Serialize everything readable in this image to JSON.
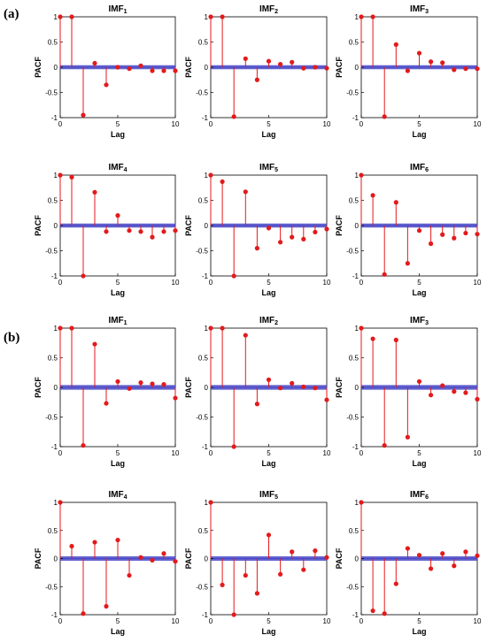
{
  "figure": {
    "panels": [
      {
        "label": "(a)"
      },
      {
        "label": "(b)"
      }
    ]
  },
  "chart_data": [
    {
      "type": "stem",
      "panel": "(a)",
      "title": "IMF",
      "title_subscript": "1",
      "xlabel": "Lag",
      "ylabel": "PACF",
      "xlim": [
        0,
        10
      ],
      "ylim": [
        -1,
        1
      ],
      "xticks": [
        0,
        5,
        10
      ],
      "yticks": [
        -1,
        -0.5,
        0,
        0.5,
        1
      ],
      "x": [
        0,
        1,
        2,
        3,
        4,
        5,
        6,
        7,
        8,
        9,
        10
      ],
      "values": [
        1,
        1,
        -0.95,
        0.08,
        -0.35,
        0.0,
        -0.03,
        0.03,
        -0.07,
        -0.07,
        -0.07
      ],
      "confidence_band": 0.04
    },
    {
      "type": "stem",
      "panel": "(a)",
      "title": "IMF",
      "title_subscript": "2",
      "xlabel": "Lag",
      "ylabel": "PACF",
      "xlim": [
        0,
        10
      ],
      "ylim": [
        -1,
        1
      ],
      "xticks": [
        0,
        5,
        10
      ],
      "yticks": [
        -1,
        -0.5,
        0,
        0.5,
        1
      ],
      "x": [
        0,
        1,
        2,
        3,
        4,
        5,
        6,
        7,
        8,
        9,
        10
      ],
      "values": [
        1,
        1,
        -0.98,
        0.17,
        -0.25,
        0.12,
        0.06,
        0.1,
        -0.02,
        0.0,
        -0.02
      ],
      "confidence_band": 0.04
    },
    {
      "type": "stem",
      "panel": "(a)",
      "title": "IMF",
      "title_subscript": "3",
      "xlabel": "Lag",
      "ylabel": "PACF",
      "xlim": [
        0,
        10
      ],
      "ylim": [
        -1,
        1
      ],
      "xticks": [
        0,
        5,
        10
      ],
      "yticks": [
        -1,
        -0.5,
        0,
        0.5,
        1
      ],
      "x": [
        0,
        1,
        2,
        3,
        4,
        5,
        6,
        7,
        8,
        9,
        10
      ],
      "values": [
        1,
        1,
        -0.98,
        0.45,
        -0.07,
        0.28,
        0.11,
        0.09,
        -0.05,
        -0.03,
        -0.03
      ],
      "confidence_band": 0.04
    },
    {
      "type": "stem",
      "panel": "(a)",
      "title": "IMF",
      "title_subscript": "4",
      "xlabel": "Lag",
      "ylabel": "PACF",
      "xlim": [
        0,
        10
      ],
      "ylim": [
        -1,
        1
      ],
      "xticks": [
        0,
        5,
        10
      ],
      "yticks": [
        -1,
        -0.5,
        0,
        0.5,
        1
      ],
      "x": [
        0,
        1,
        2,
        3,
        4,
        5,
        6,
        7,
        8,
        9,
        10
      ],
      "values": [
        1,
        0.96,
        -1.0,
        0.66,
        -0.12,
        0.2,
        -0.1,
        -0.12,
        -0.23,
        -0.12,
        -0.1
      ],
      "confidence_band": 0.04
    },
    {
      "type": "stem",
      "panel": "(a)",
      "title": "IMF",
      "title_subscript": "5",
      "xlabel": "Lag",
      "ylabel": "PACF",
      "xlim": [
        0,
        10
      ],
      "ylim": [
        -1,
        1
      ],
      "xticks": [
        0,
        5,
        10
      ],
      "yticks": [
        -1,
        -0.5,
        0,
        0.5,
        1
      ],
      "x": [
        0,
        1,
        2,
        3,
        4,
        5,
        6,
        7,
        8,
        9,
        10
      ],
      "values": [
        1,
        0.87,
        -1.0,
        0.67,
        -0.45,
        -0.05,
        -0.33,
        -0.23,
        -0.27,
        -0.13,
        -0.07
      ],
      "confidence_band": 0.04
    },
    {
      "type": "stem",
      "panel": "(a)",
      "title": "IMF",
      "title_subscript": "6",
      "xlabel": "Lag",
      "ylabel": "PACF",
      "xlim": [
        0,
        10
      ],
      "ylim": [
        -1,
        1
      ],
      "xticks": [
        0,
        5,
        10
      ],
      "yticks": [
        -1,
        -0.5,
        0,
        0.5,
        1
      ],
      "x": [
        0,
        1,
        2,
        3,
        4,
        5,
        6,
        7,
        8,
        9,
        10
      ],
      "values": [
        1,
        0.6,
        -0.97,
        0.46,
        -0.75,
        -0.1,
        -0.36,
        -0.18,
        -0.25,
        -0.15,
        -0.17
      ],
      "confidence_band": 0.04
    },
    {
      "type": "stem",
      "panel": "(b)",
      "title": "IMF",
      "title_subscript": "1",
      "xlabel": "Lag",
      "ylabel": "PACF",
      "xlim": [
        0,
        10
      ],
      "ylim": [
        -1,
        1
      ],
      "xticks": [
        0,
        5,
        10
      ],
      "yticks": [
        -1,
        -0.5,
        0,
        0.5,
        1
      ],
      "x": [
        0,
        1,
        2,
        3,
        4,
        5,
        6,
        7,
        8,
        9,
        10
      ],
      "values": [
        1,
        1,
        -0.98,
        0.73,
        -0.27,
        0.1,
        -0.02,
        0.08,
        0.06,
        0.05,
        -0.18
      ],
      "confidence_band": 0.04
    },
    {
      "type": "stem",
      "panel": "(b)",
      "title": "IMF",
      "title_subscript": "2",
      "xlabel": "Lag",
      "ylabel": "PACF",
      "xlim": [
        0,
        10
      ],
      "ylim": [
        -1,
        1
      ],
      "xticks": [
        0,
        5,
        10
      ],
      "yticks": [
        -1,
        -0.5,
        0,
        0.5,
        1
      ],
      "x": [
        0,
        1,
        2,
        3,
        4,
        5,
        6,
        7,
        8,
        9,
        10
      ],
      "values": [
        1,
        1,
        -1.0,
        0.88,
        -0.28,
        0.13,
        -0.01,
        0.07,
        0.01,
        -0.01,
        -0.21
      ],
      "confidence_band": 0.04
    },
    {
      "type": "stem",
      "panel": "(b)",
      "title": "IMF",
      "title_subscript": "3",
      "xlabel": "Lag",
      "ylabel": "PACF",
      "xlim": [
        0,
        10
      ],
      "ylim": [
        -1,
        1
      ],
      "xticks": [
        0,
        5,
        10
      ],
      "yticks": [
        -1,
        -0.5,
        0,
        0.5,
        1
      ],
      "x": [
        0,
        1,
        2,
        3,
        4,
        5,
        6,
        7,
        8,
        9,
        10
      ],
      "values": [
        1,
        0.82,
        -0.98,
        0.8,
        -0.84,
        0.1,
        -0.13,
        0.03,
        -0.07,
        -0.09,
        -0.2
      ],
      "confidence_band": 0.04
    },
    {
      "type": "stem",
      "panel": "(b)",
      "title": "IMF",
      "title_subscript": "4",
      "xlabel": "Lag",
      "ylabel": "PACF",
      "xlim": [
        0,
        10
      ],
      "ylim": [
        -1,
        1
      ],
      "xticks": [
        0,
        5,
        10
      ],
      "yticks": [
        -1,
        -0.5,
        0,
        0.5,
        1
      ],
      "x": [
        0,
        1,
        2,
        3,
        4,
        5,
        6,
        7,
        8,
        9,
        10
      ],
      "values": [
        1,
        0.22,
        -0.98,
        0.29,
        -0.85,
        0.33,
        -0.3,
        0.02,
        -0.03,
        0.09,
        -0.05
      ],
      "confidence_band": 0.04
    },
    {
      "type": "stem",
      "panel": "(b)",
      "title": "IMF",
      "title_subscript": "5",
      "xlabel": "Lag",
      "ylabel": "PACF",
      "xlim": [
        0,
        10
      ],
      "ylim": [
        -1,
        1
      ],
      "xticks": [
        0,
        5,
        10
      ],
      "yticks": [
        -1,
        -0.5,
        0,
        0.5,
        1
      ],
      "x": [
        0,
        1,
        2,
        3,
        4,
        5,
        6,
        7,
        8,
        9,
        10
      ],
      "values": [
        1,
        -0.47,
        -1.0,
        -0.3,
        -0.62,
        0.42,
        -0.28,
        0.12,
        -0.2,
        0.14,
        0.02
      ],
      "confidence_band": 0.04
    },
    {
      "type": "stem",
      "panel": "(b)",
      "title": "IMF",
      "title_subscript": "6",
      "xlabel": "Lag",
      "ylabel": "PACF",
      "xlim": [
        0,
        10
      ],
      "ylim": [
        -1,
        1
      ],
      "xticks": [
        0,
        5,
        10
      ],
      "yticks": [
        -1,
        -0.5,
        0,
        0.5,
        1
      ],
      "x": [
        0,
        1,
        2,
        3,
        4,
        5,
        6,
        7,
        8,
        9,
        10
      ],
      "values": [
        1,
        -0.93,
        -0.98,
        -0.45,
        0.18,
        0.06,
        -0.18,
        0.09,
        -0.13,
        0.12,
        0.05
      ],
      "confidence_band": 0.04
    }
  ],
  "colors": {
    "stem": "#e31a1c",
    "band": "#4a4ac8",
    "axis": "#000000",
    "background": "#ffffff"
  }
}
